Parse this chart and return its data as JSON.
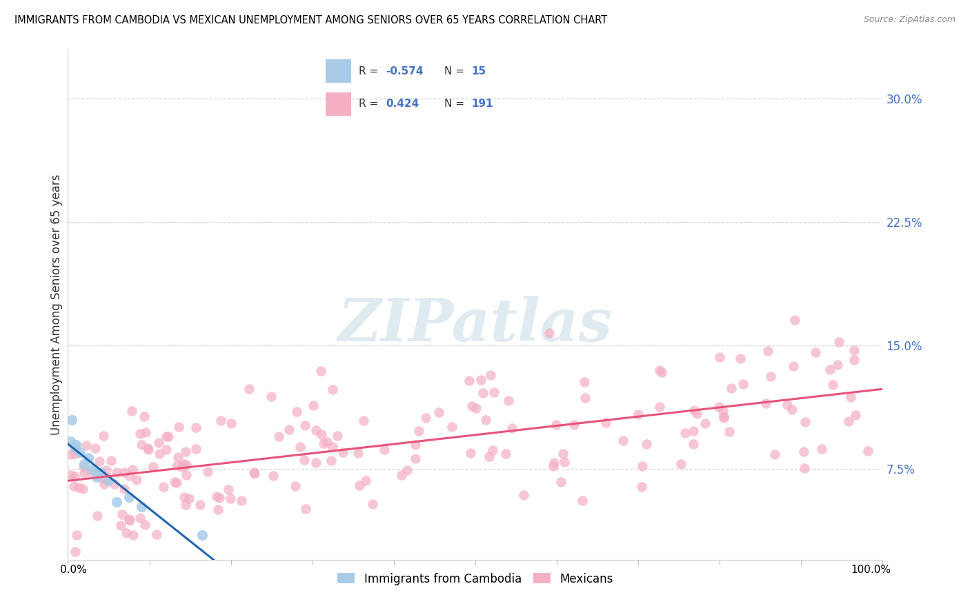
{
  "title": "IMMIGRANTS FROM CAMBODIA VS MEXICAN UNEMPLOYMENT AMONG SENIORS OVER 65 YEARS CORRELATION CHART",
  "source": "Source: ZipAtlas.com",
  "ylabel": "Unemployment Among Seniors over 65 years",
  "ytick_labels": [
    "7.5%",
    "15.0%",
    "22.5%",
    "30.0%"
  ],
  "ytick_values": [
    7.5,
    15.0,
    22.5,
    30.0
  ],
  "xlim": [
    0.0,
    100.0
  ],
  "ylim": [
    2.0,
    33.0
  ],
  "legend_R_blue": "-0.574",
  "legend_N_blue": "15",
  "legend_R_pink": "0.424",
  "legend_N_pink": "191",
  "blue_color": "#a8cce8",
  "pink_color": "#f4afc3",
  "blue_line_color": "#2166ac",
  "pink_line_color": "#e8537a",
  "tick_color": "#4472c4",
  "watermark_color": "#dce8f0"
}
